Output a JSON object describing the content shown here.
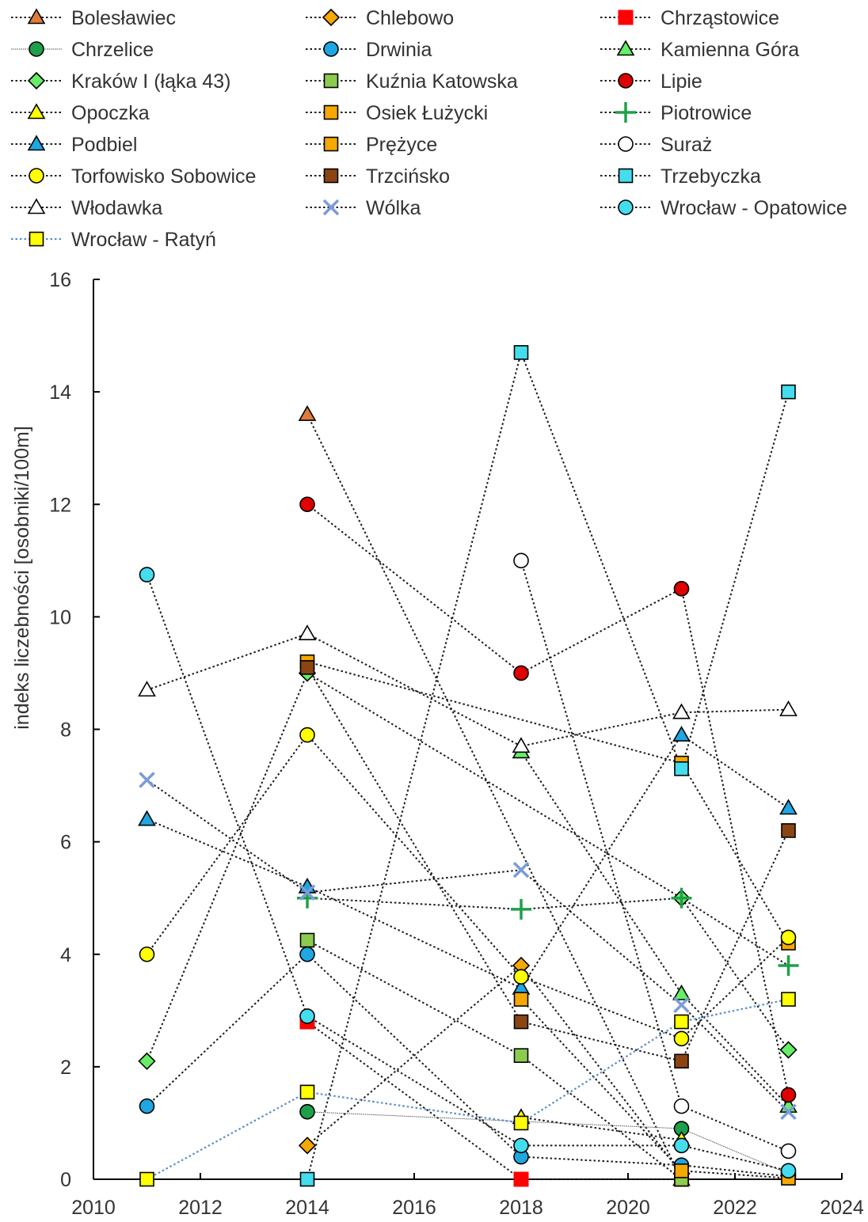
{
  "chart_data": {
    "type": "line",
    "title": "",
    "xlabel": "",
    "ylabel": "indeks liczebności [osobniki/100m]",
    "xlim": [
      2010,
      2024
    ],
    "ylim": [
      0,
      16
    ],
    "x_ticks": [
      "2010",
      "2012",
      "2014",
      "2016",
      "2018",
      "2020",
      "2022",
      "2024"
    ],
    "y_ticks": [
      "0",
      "2",
      "4",
      "6",
      "8",
      "10",
      "12",
      "14",
      "16"
    ],
    "grid": false,
    "legend_position": "top",
    "series": [
      {
        "name": "Bolesławiec",
        "marker": "triangle",
        "color": "#E07B39",
        "line": "dotted",
        "x": [
          2014,
          2021
        ],
        "y": [
          13.6,
          0
        ]
      },
      {
        "name": "Chlebowo",
        "marker": "diamond",
        "color": "#F5A800",
        "line": "dotted",
        "x": [
          2014,
          2018,
          2021
        ],
        "y": [
          0.6,
          3.8,
          0.1
        ]
      },
      {
        "name": "Chrząstowice",
        "marker": "filled-square",
        "color": "#FF0000",
        "line": "dotted",
        "x": [
          2014,
          2018,
          2021
        ],
        "y": [
          2.8,
          0,
          0
        ]
      },
      {
        "name": "Chrzelice",
        "marker": "circle",
        "color": "#1EA04A",
        "line": "thin",
        "x": [
          2014,
          2021,
          2023
        ],
        "y": [
          1.2,
          0.9,
          0.1
        ]
      },
      {
        "name": "Drwinia",
        "marker": "circle",
        "color": "#1EA7E1",
        "line": "dotted",
        "x": [
          2011,
          2014,
          2018,
          2021,
          2023
        ],
        "y": [
          1.3,
          4.0,
          0.4,
          0.25,
          0.05
        ]
      },
      {
        "name": "Kamienna Góra",
        "marker": "triangle",
        "color": "#66EE66",
        "line": "dotted",
        "x": [
          2018,
          2021,
          2023
        ],
        "y": [
          7.6,
          3.3,
          1.3
        ]
      },
      {
        "name": "Kraków I (łąka 43)",
        "marker": "diamond",
        "color": "#66EE66",
        "line": "dotted",
        "x": [
          2011,
          2014,
          2021,
          2023
        ],
        "y": [
          2.1,
          9.0,
          5.0,
          2.3
        ]
      },
      {
        "name": "Kuźnia Katowska",
        "marker": "square",
        "color": "#8DCB4F",
        "line": "dotted",
        "x": [
          2014,
          2018,
          2021
        ],
        "y": [
          4.25,
          2.2,
          0
        ]
      },
      {
        "name": "Lipie",
        "marker": "circle",
        "color": "#E00000",
        "line": "dotted",
        "x": [
          2014,
          2018,
          2021,
          2023
        ],
        "y": [
          12.0,
          9.0,
          10.5,
          1.5
        ]
      },
      {
        "name": "Opoczka",
        "marker": "triangle",
        "color": "#FFFF00",
        "line": "dotted",
        "x": [
          2018,
          2021
        ],
        "y": [
          1.1,
          0.7
        ]
      },
      {
        "name": "Osiek Łużycki",
        "marker": "square",
        "color": "#F5A800",
        "line": "dotted",
        "x": [
          2014,
          2021,
          2023
        ],
        "y": [
          9.2,
          7.4,
          4.2
        ]
      },
      {
        "name": "Piotrowice",
        "marker": "plus",
        "color": "#1EA04A",
        "line": "dotted",
        "x": [
          2014,
          2018,
          2021,
          2023
        ],
        "y": [
          5.0,
          4.8,
          5.0,
          3.8
        ]
      },
      {
        "name": "Podbiel",
        "marker": "triangle",
        "color": "#1EA7E1",
        "line": "dotted",
        "x": [
          2011,
          2014,
          2018,
          2021,
          2023
        ],
        "y": [
          6.4,
          5.2,
          3.4,
          7.9,
          6.6
        ]
      },
      {
        "name": "Prężyce",
        "marker": "square",
        "color": "#F5A800",
        "line": "dotted",
        "x": [
          2018,
          2021,
          2023
        ],
        "y": [
          3.2,
          0.15,
          0.02
        ]
      },
      {
        "name": "Suraż",
        "marker": "circle",
        "color": "#FFFFFF",
        "line": "dotted",
        "x": [
          2018,
          2021,
          2023
        ],
        "y": [
          11.0,
          1.3,
          0.5
        ]
      },
      {
        "name": "Torfowisko Sobowice",
        "marker": "circle",
        "color": "#FFFF00",
        "line": "dotted",
        "x": [
          2011,
          2014,
          2018,
          2021,
          2023
        ],
        "y": [
          4.0,
          7.9,
          3.6,
          2.5,
          4.3
        ]
      },
      {
        "name": "Trzcińsko",
        "marker": "square",
        "color": "#8B4513",
        "line": "dotted",
        "x": [
          2014,
          2018,
          2021,
          2023
        ],
        "y": [
          9.1,
          2.8,
          2.1,
          6.2
        ]
      },
      {
        "name": "Trzebyczka",
        "marker": "square",
        "color": "#44DDEE",
        "line": "dotted",
        "x": [
          2014,
          2018,
          2021,
          2023
        ],
        "y": [
          0,
          14.7,
          7.3,
          14.0
        ]
      },
      {
        "name": "Włodawka",
        "marker": "triangle",
        "color": "#FFFFFF",
        "line": "dotted",
        "x": [
          2011,
          2014,
          2018,
          2021,
          2023
        ],
        "y": [
          8.7,
          9.7,
          7.7,
          8.3,
          8.35
        ]
      },
      {
        "name": "Wólka",
        "marker": "cross",
        "color": "#7B9BD8",
        "line": "dotted",
        "x": [
          2011,
          2014,
          2018,
          2021,
          2023
        ],
        "y": [
          7.1,
          5.1,
          5.5,
          3.1,
          1.2
        ]
      },
      {
        "name": "Wrocław - Opatowice",
        "marker": "circle",
        "color": "#44DDEE",
        "line": "dotted",
        "x": [
          2011,
          2014,
          2018,
          2021,
          2023
        ],
        "y": [
          10.75,
          2.9,
          0.6,
          0.6,
          0.15
        ]
      },
      {
        "name": "Wrocław - Ratyń",
        "marker": "square",
        "color": "#FFFF00",
        "line": "blue-dotted",
        "x": [
          2011,
          2014,
          2018,
          2021,
          2023
        ],
        "y": [
          0,
          1.55,
          1.0,
          2.8,
          3.2
        ]
      }
    ]
  }
}
